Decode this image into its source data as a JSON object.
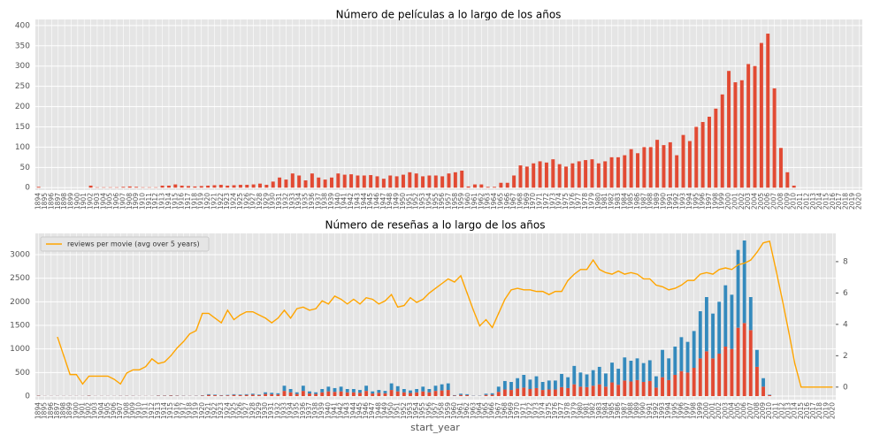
{
  "chart_data": [
    {
      "type": "bar",
      "title": "Número de películas a lo largo de los años",
      "categories": [
        1894,
        1895,
        1896,
        1897,
        1898,
        1899,
        1900,
        1901,
        1902,
        1903,
        1904,
        1905,
        1906,
        1907,
        1908,
        1909,
        1910,
        1911,
        1912,
        1913,
        1914,
        1915,
        1916,
        1917,
        1918,
        1919,
        1920,
        1921,
        1922,
        1923,
        1924,
        1925,
        1926,
        1927,
        1928,
        1929,
        1930,
        1931,
        1932,
        1933,
        1934,
        1935,
        1936,
        1937,
        1938,
        1939,
        1940,
        1941,
        1942,
        1943,
        1944,
        1945,
        1946,
        1947,
        1948,
        1949,
        1950,
        1951,
        1952,
        1953,
        1954,
        1955,
        1956,
        1957,
        1958,
        1959,
        1960,
        1961,
        1962,
        1963,
        1964,
        1965,
        1966,
        1967,
        1968,
        1969,
        1970,
        1971,
        1972,
        1973,
        1974,
        1975,
        1976,
        1977,
        1978,
        1979,
        1980,
        1981,
        1982,
        1983,
        1984,
        1985,
        1986,
        1987,
        1988,
        1989,
        1990,
        1991,
        1992,
        1993,
        1994,
        1995,
        1996,
        1997,
        1998,
        1999,
        2000,
        2001,
        2002,
        2003,
        2004,
        2005,
        2006,
        2007,
        2008,
        2009,
        2010,
        2011,
        2012,
        2013,
        2014,
        2015,
        2016,
        2017,
        2018,
        2019,
        2020
      ],
      "series": [
        {
          "color": "#e24a33",
          "values": [
            2,
            0,
            0,
            0,
            0,
            0,
            0,
            0,
            5,
            1,
            1,
            1,
            1,
            2,
            3,
            2,
            1,
            1,
            1,
            5,
            5,
            8,
            5,
            4,
            3,
            4,
            5,
            6,
            7,
            5,
            6,
            7,
            7,
            8,
            10,
            7,
            15,
            25,
            20,
            35,
            30,
            18,
            35,
            25,
            20,
            25,
            35,
            32,
            33,
            30,
            30,
            31,
            28,
            22,
            30,
            28,
            32,
            38,
            35,
            28,
            30,
            30,
            28,
            35,
            38,
            42,
            3,
            8,
            8,
            2,
            2,
            12,
            12,
            30,
            55,
            52,
            60,
            65,
            62,
            70,
            58,
            52,
            60,
            65,
            68,
            70,
            60,
            65,
            75,
            75,
            80,
            95,
            85,
            100,
            100,
            118,
            105,
            112,
            80,
            130,
            115,
            150,
            162,
            175,
            195,
            230,
            288,
            260,
            265,
            305,
            300,
            357,
            380,
            245,
            98,
            38,
            5,
            0,
            0,
            0,
            0,
            0,
            0,
            0,
            0,
            0,
            0
          ]
        }
      ],
      "ylim": [
        -6,
        415
      ],
      "yticks": [
        0,
        50,
        100,
        150,
        200,
        250,
        300,
        350,
        400
      ],
      "grid": true
    },
    {
      "type": "bar",
      "stacked": true,
      "title": "Número de reseñas a lo largo de los años",
      "xlabel": "start_year",
      "categories": [
        1894,
        1895,
        1896,
        1897,
        1898,
        1899,
        1900,
        1901,
        1902,
        1903,
        1904,
        1905,
        1906,
        1907,
        1908,
        1909,
        1910,
        1911,
        1912,
        1913,
        1914,
        1915,
        1916,
        1917,
        1918,
        1919,
        1920,
        1921,
        1922,
        1923,
        1924,
        1925,
        1926,
        1927,
        1928,
        1929,
        1930,
        1931,
        1932,
        1933,
        1934,
        1935,
        1936,
        1937,
        1938,
        1939,
        1940,
        1941,
        1942,
        1943,
        1944,
        1945,
        1946,
        1947,
        1948,
        1949,
        1950,
        1951,
        1952,
        1953,
        1954,
        1955,
        1956,
        1957,
        1958,
        1959,
        1960,
        1961,
        1962,
        1963,
        1964,
        1965,
        1966,
        1967,
        1968,
        1969,
        1970,
        1971,
        1972,
        1973,
        1974,
        1975,
        1976,
        1977,
        1978,
        1979,
        1980,
        1981,
        1982,
        1983,
        1984,
        1985,
        1986,
        1987,
        1988,
        1989,
        1990,
        1991,
        1992,
        1993,
        1994,
        1995,
        1996,
        1997,
        1998,
        1999,
        2000,
        2001,
        2002,
        2003,
        2004,
        2005,
        2006,
        2007,
        2008,
        2009,
        2010,
        2011,
        2012,
        2013,
        2014,
        2015,
        2016,
        2017,
        2018,
        2019,
        2020
      ],
      "series": [
        {
          "color": "#e24a33",
          "values": [
            8,
            3,
            3,
            3,
            3,
            3,
            3,
            3,
            8,
            3,
            3,
            3,
            3,
            5,
            6,
            5,
            3,
            3,
            3,
            8,
            8,
            12,
            8,
            6,
            5,
            6,
            10,
            25,
            18,
            12,
            15,
            25,
            20,
            25,
            30,
            20,
            45,
            40,
            35,
            110,
            80,
            45,
            110,
            55,
            45,
            80,
            100,
            90,
            100,
            80,
            80,
            70,
            110,
            55,
            70,
            60,
            130,
            100,
            80,
            65,
            80,
            100,
            80,
            110,
            120,
            130,
            10,
            25,
            20,
            5,
            5,
            25,
            30,
            90,
            140,
            130,
            160,
            180,
            150,
            170,
            130,
            140,
            140,
            190,
            170,
            250,
            200,
            190,
            220,
            250,
            200,
            290,
            240,
            330,
            310,
            340,
            300,
            320,
            180,
            400,
            340,
            450,
            530,
            500,
            600,
            800,
            950,
            800,
            900,
            1050,
            1000,
            1450,
            1550,
            1400,
            620,
            200,
            20,
            0,
            0,
            0,
            0,
            0,
            0,
            0,
            0,
            0,
            0
          ]
        },
        {
          "color": "#348abd",
          "values": [
            4,
            2,
            2,
            2,
            2,
            2,
            2,
            2,
            4,
            2,
            2,
            2,
            2,
            3,
            3,
            3,
            2,
            2,
            2,
            5,
            5,
            6,
            5,
            4,
            3,
            4,
            6,
            15,
            12,
            8,
            10,
            15,
            12,
            15,
            20,
            12,
            35,
            30,
            25,
            110,
            70,
            35,
            110,
            45,
            35,
            70,
            100,
            80,
            100,
            70,
            70,
            60,
            110,
            45,
            60,
            50,
            140,
            110,
            70,
            55,
            70,
            100,
            70,
            110,
            130,
            140,
            10,
            25,
            20,
            5,
            5,
            25,
            30,
            110,
            180,
            170,
            220,
            270,
            200,
            250,
            170,
            190,
            190,
            280,
            230,
            390,
            300,
            270,
            330,
            370,
            280,
            420,
            340,
            490,
            440,
            460,
            400,
            440,
            240,
            580,
            460,
            600,
            720,
            650,
            780,
            1000,
            1150,
            950,
            1100,
            1300,
            1150,
            1650,
            1750,
            700,
            360,
            180,
            10,
            0,
            0,
            0,
            0,
            0,
            0,
            0,
            0,
            0,
            0
          ]
        },
        {
          "type": "line",
          "axis": "y2",
          "name": "reviews per movie (avg over 5 years)",
          "color": "#ffa500",
          "values": [
            null,
            null,
            null,
            3.2,
            2.0,
            0.8,
            0.8,
            0.2,
            0.7,
            0.7,
            0.7,
            0.7,
            0.5,
            0.2,
            0.9,
            1.1,
            1.1,
            1.3,
            1.8,
            1.5,
            1.6,
            2.0,
            2.5,
            2.9,
            3.4,
            3.6,
            4.7,
            4.7,
            4.4,
            4.1,
            4.9,
            4.3,
            4.6,
            4.8,
            4.8,
            4.6,
            4.4,
            4.1,
            4.4,
            4.9,
            4.4,
            5.0,
            5.1,
            4.9,
            5.0,
            5.5,
            5.3,
            5.8,
            5.6,
            5.3,
            5.6,
            5.3,
            5.7,
            5.6,
            5.3,
            5.5,
            5.9,
            5.1,
            5.2,
            5.7,
            5.4,
            5.6,
            6.0,
            6.3,
            6.6,
            6.9,
            6.7,
            7.1,
            6.0,
            4.9,
            3.9,
            4.3,
            3.8,
            4.7,
            5.6,
            6.2,
            6.3,
            6.2,
            6.2,
            6.1,
            6.1,
            5.9,
            6.1,
            6.1,
            6.8,
            7.2,
            7.5,
            7.5,
            8.1,
            7.5,
            7.3,
            7.2,
            7.4,
            7.2,
            7.3,
            7.2,
            6.9,
            6.9,
            6.5,
            6.4,
            6.2,
            6.3,
            6.5,
            6.8,
            6.8,
            7.2,
            7.3,
            7.2,
            7.5,
            7.6,
            7.5,
            7.8,
            7.9,
            8.1,
            8.6,
            9.2,
            9.3,
            7.5,
            5.6,
            3.6,
            1.5,
            0,
            0,
            0,
            0,
            0,
            0
          ]
        }
      ],
      "ylim": [
        -75,
        3450
      ],
      "yticks": [
        0,
        500,
        1000,
        1500,
        2000,
        2500,
        3000
      ],
      "y2lim": [
        -0.8,
        9.8
      ],
      "y2ticks": [
        0,
        2,
        4,
        6,
        8
      ],
      "grid": true,
      "legend": "upper left"
    }
  ]
}
